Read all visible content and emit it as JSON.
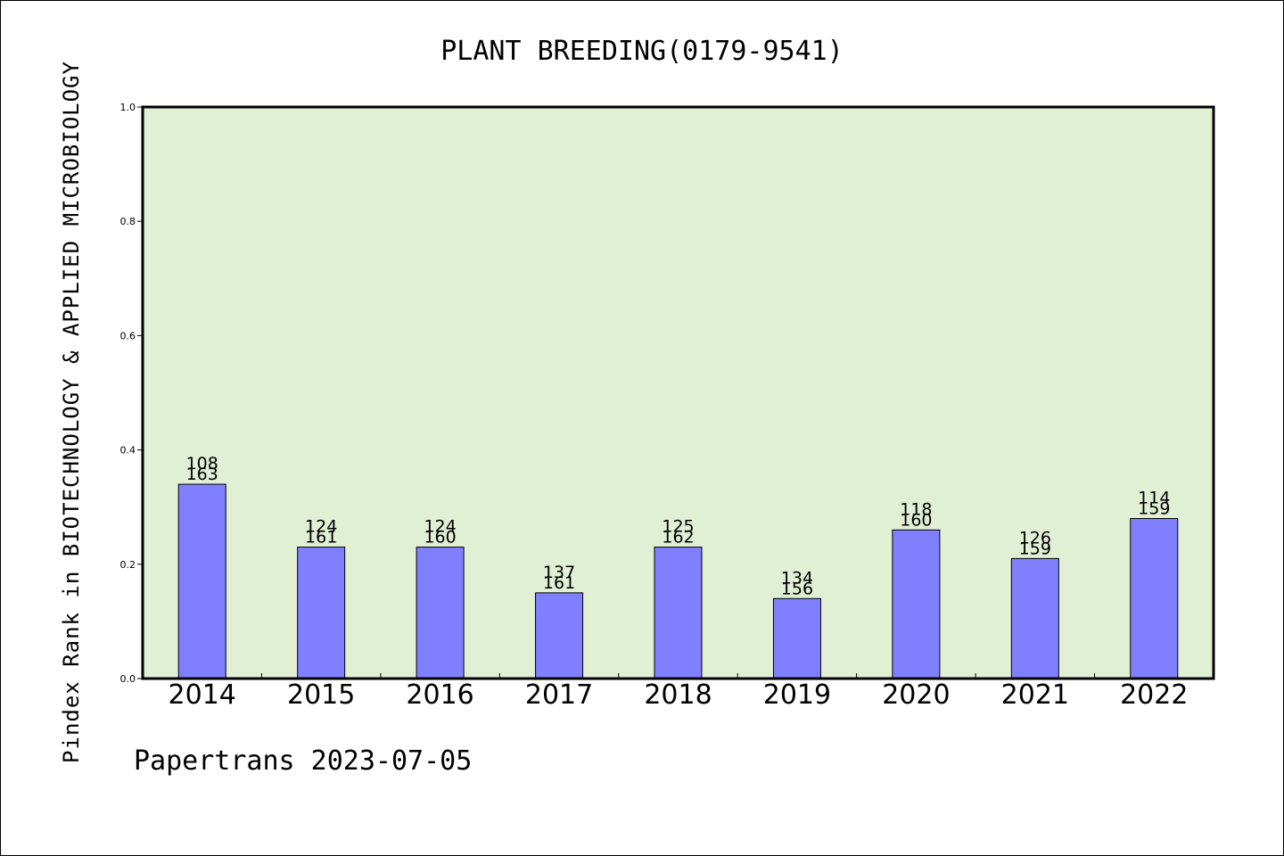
{
  "chart_data": {
    "type": "bar",
    "title": "PLANT BREEDING(0179-9541)",
    "xlabel": "",
    "ylabel": "Pindex Rank in BIOTECHNOLOGY & APPLIED MICROBIOLOGY",
    "ylim": [
      0.0,
      1.0
    ],
    "yticks": [
      "0.0",
      "0.2",
      "0.4",
      "0.6",
      "0.8",
      "1.0"
    ],
    "categories": [
      "2014",
      "2015",
      "2016",
      "2017",
      "2018",
      "2019",
      "2020",
      "2021",
      "2022"
    ],
    "values": [
      0.34,
      0.23,
      0.23,
      0.15,
      0.23,
      0.14,
      0.26,
      0.21,
      0.28
    ],
    "labels_top": [
      "108",
      "124",
      "124",
      "137",
      "125",
      "134",
      "118",
      "126",
      "114"
    ],
    "labels_bottom": [
      "163",
      "161",
      "160",
      "161",
      "162",
      "156",
      "160",
      "159",
      "159"
    ],
    "grid": false,
    "legend": "none",
    "colors": {
      "bar": "#8080ff",
      "plot_background": "#e1efd5",
      "axis": "#000000"
    }
  },
  "footer": "Papertrans 2023-07-05"
}
